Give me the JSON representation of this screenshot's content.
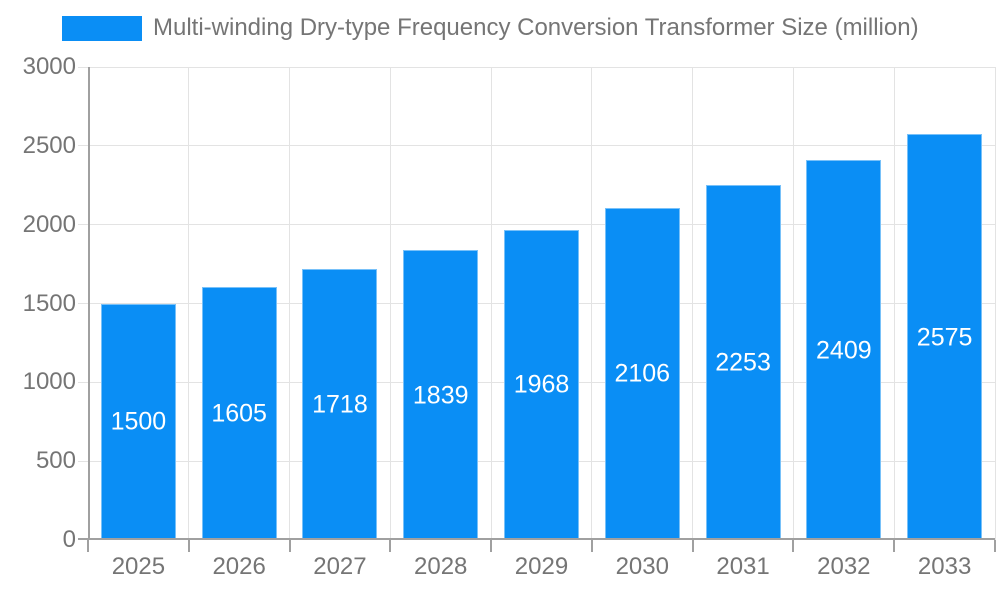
{
  "legend": {
    "swatch_color": "#0a8ef5",
    "label": "Multi-winding Dry-type Frequency Conversion Transformer Size (million)"
  },
  "chart_data": {
    "type": "bar",
    "title": "Multi-winding Dry-type Frequency Conversion Transformer Size (million)",
    "categories": [
      "2025",
      "2026",
      "2027",
      "2028",
      "2029",
      "2030",
      "2031",
      "2032",
      "2033"
    ],
    "series": [
      {
        "name": "Multi-winding Dry-type Frequency Conversion Transformer Size (million)",
        "values": [
          1500,
          1605,
          1718,
          1839,
          1968,
          2106,
          2253,
          2409,
          2575
        ],
        "labels": [
          "1500",
          "1605",
          "1718",
          "1839",
          "1968",
          "2106",
          "2253",
          "2409",
          "2575"
        ]
      }
    ],
    "xlabel": "",
    "ylabel": "",
    "ylim": [
      0,
      3000
    ],
    "yticks": [
      {
        "value": 0,
        "label": "0"
      },
      {
        "value": 500,
        "label": "500"
      },
      {
        "value": 1000,
        "label": "1000"
      },
      {
        "value": 1500,
        "label": "1500"
      },
      {
        "value": 2000,
        "label": "2000"
      },
      {
        "value": 2500,
        "label": "2500"
      },
      {
        "value": 3000,
        "label": "3000"
      }
    ],
    "grid": true,
    "legend_position": "top-left",
    "value_labels_position": "inside-center"
  },
  "colors": {
    "bar": "#0a8ef5",
    "grid": "#e3e3e3",
    "axis": "#a0a0a0",
    "tick_text": "#757575",
    "value_text": "#ffffff",
    "background": "#ffffff"
  }
}
